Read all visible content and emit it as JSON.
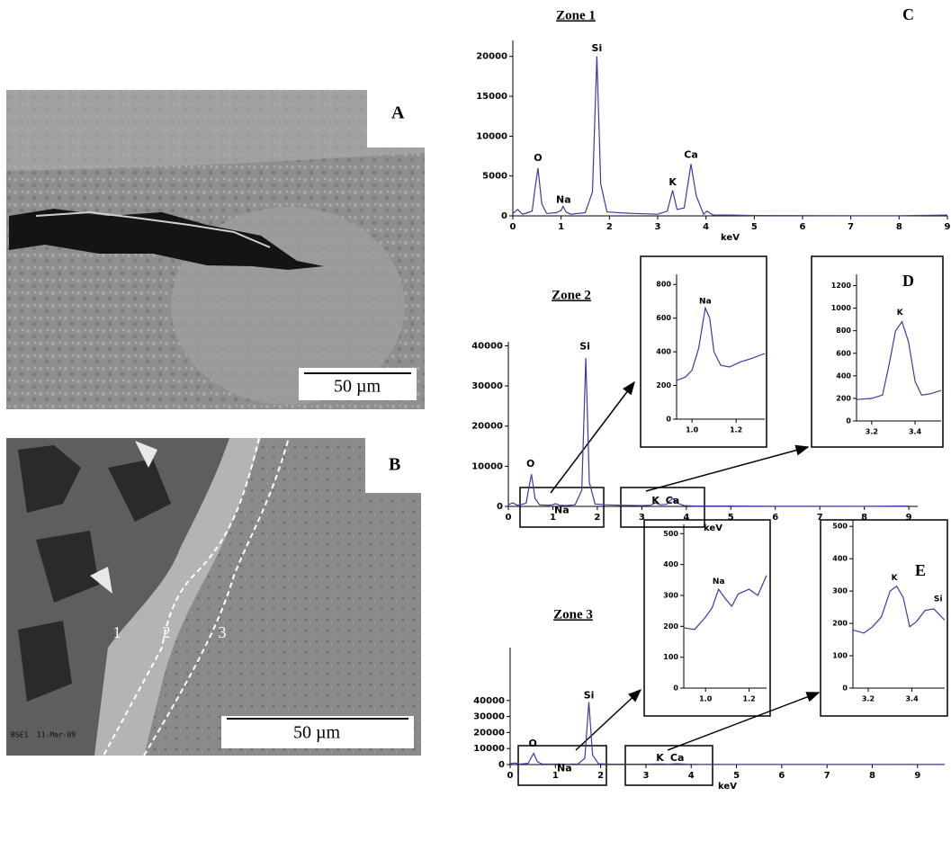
{
  "figure": {
    "panel_labels": [
      "A",
      "B",
      "C",
      "D",
      "E"
    ],
    "scale_bar_a": "50 µm",
    "scale_bar_b": "50 µm",
    "zone_numbers": [
      "1",
      "2",
      "3"
    ],
    "image_caption": "BSE1  11-Mar-09"
  },
  "chart_data": [
    {
      "type": "line",
      "title": "Zone 1",
      "x_label": "keV",
      "x": [
        0,
        0.1,
        0.2,
        0.3,
        0.4,
        0.45,
        0.52,
        0.6,
        0.7,
        0.9,
        1.0,
        1.04,
        1.1,
        1.2,
        1.5,
        1.65,
        1.74,
        1.82,
        1.95,
        2.2,
        2.5,
        3.0,
        3.2,
        3.31,
        3.4,
        3.55,
        3.69,
        3.8,
        3.95,
        4.02,
        4.15,
        4.5,
        5,
        6,
        7,
        8,
        9
      ],
      "series": [
        {
          "color": "#3a3aa8",
          "values": [
            300,
            800,
            200,
            400,
            600,
            3000,
            6000,
            1500,
            300,
            400,
            700,
            1200,
            500,
            200,
            400,
            3000,
            20000,
            4000,
            500,
            400,
            300,
            200,
            600,
            3200,
            800,
            1000,
            6500,
            2500,
            200,
            600,
            100,
            100,
            50,
            30,
            20,
            20,
            100
          ]
        }
      ],
      "peak_labels": [
        "O",
        "Na",
        "Si",
        "K",
        "Ca"
      ],
      "xlim": [
        0,
        9
      ],
      "ylim": [
        0,
        22000
      ],
      "xticks": [
        0,
        1,
        2,
        3,
        4,
        5,
        6,
        7,
        8,
        9
      ],
      "yticks": [
        0,
        5000,
        10000,
        15000,
        20000
      ]
    },
    {
      "type": "line",
      "title": "Zone 2",
      "x_label": "keV",
      "x": [
        0,
        0.1,
        0.2,
        0.3,
        0.4,
        0.45,
        0.52,
        0.6,
        0.7,
        0.9,
        1.0,
        1.06,
        1.15,
        1.3,
        1.5,
        1.65,
        1.74,
        1.82,
        1.95,
        2.2,
        2.5,
        3.0,
        3.2,
        3.31,
        3.4,
        3.55,
        3.69,
        3.8,
        3.95,
        4.2,
        5,
        6,
        7,
        8,
        9
      ],
      "series": [
        {
          "color": "#3a3aa8",
          "values": [
            400,
            900,
            300,
            500,
            800,
            4000,
            8000,
            2000,
            400,
            300,
            400,
            700,
            300,
            200,
            400,
            4000,
            37000,
            6000,
            600,
            400,
            300,
            200,
            300,
            900,
            400,
            500,
            2000,
            800,
            200,
            100,
            80,
            50,
            40,
            30,
            100
          ]
        }
      ],
      "peak_labels": [
        "O",
        "Na",
        "Si",
        "K",
        "Ca"
      ],
      "xlim": [
        0,
        9.2
      ],
      "ylim": [
        0,
        41000
      ],
      "xticks": [
        0,
        1,
        2,
        3,
        4,
        5,
        6,
        7,
        8,
        9
      ],
      "yticks": [
        0,
        10000,
        20000,
        30000,
        40000
      ]
    },
    {
      "type": "line",
      "x": [
        0.93,
        0.97,
        1.0,
        1.03,
        1.06,
        1.08,
        1.1,
        1.13,
        1.17,
        1.22,
        1.27,
        1.33
      ],
      "series": [
        {
          "color": "#3a3aa8",
          "values": [
            230,
            250,
            290,
            420,
            660,
            600,
            400,
            320,
            310,
            340,
            360,
            390
          ]
        }
      ],
      "peak_labels": [
        "Na"
      ],
      "xlim": [
        0.93,
        1.33
      ],
      "ylim": [
        0,
        860
      ],
      "xticks": [
        {
          "value": 1,
          "label": "1.0"
        },
        1.2
      ],
      "yticks": [
        0,
        200,
        400,
        600,
        800
      ]
    },
    {
      "type": "line",
      "x": [
        3.13,
        3.2,
        3.25,
        3.28,
        3.31,
        3.34,
        3.37,
        3.4,
        3.43,
        3.47,
        3.52
      ],
      "series": [
        {
          "color": "#3a3aa8",
          "values": [
            190,
            200,
            230,
            500,
            800,
            880,
            700,
            350,
            230,
            240,
            270
          ]
        }
      ],
      "peak_labels": [
        "K"
      ],
      "xlim": [
        3.13,
        3.52
      ],
      "ylim": [
        0,
        1300
      ],
      "xticks": [
        3.2,
        3.4
      ],
      "yticks": [
        0,
        200,
        400,
        600,
        800,
        1000,
        1200
      ]
    },
    {
      "type": "line",
      "title": "Zone 3",
      "x_label": "keV",
      "x": [
        0,
        0.1,
        0.2,
        0.3,
        0.4,
        0.45,
        0.52,
        0.6,
        0.7,
        0.9,
        1.0,
        1.06,
        1.15,
        1.3,
        1.5,
        1.65,
        1.74,
        1.82,
        1.95,
        2.2,
        2.5,
        3.0,
        3.31,
        3.5,
        3.69,
        3.9,
        4.2,
        5,
        6,
        7,
        8,
        9,
        9.6
      ],
      "series": [
        {
          "color": "#3a3aa8",
          "values": [
            500,
            1000,
            300,
            500,
            800,
            3500,
            7000,
            1800,
            400,
            300,
            300,
            400,
            250,
            200,
            400,
            4000,
            39000,
            6000,
            500,
            300,
            250,
            200,
            400,
            250,
            500,
            200,
            100,
            80,
            50,
            40,
            30,
            100,
            60
          ]
        }
      ],
      "peak_labels": [
        "O",
        "Na",
        "Si",
        "K",
        "Ca"
      ],
      "xlim": [
        0,
        9.6
      ],
      "ylim": [
        0,
        73000
      ],
      "xticks": [
        0,
        1,
        2,
        3,
        4,
        5,
        6,
        7,
        8,
        9
      ],
      "yticks": [
        0,
        10000,
        20000,
        30000,
        40000
      ]
    },
    {
      "type": "line",
      "x": [
        0.9,
        0.95,
        1.0,
        1.03,
        1.06,
        1.09,
        1.12,
        1.15,
        1.2,
        1.24,
        1.28
      ],
      "series": [
        {
          "color": "#3a3aa8",
          "values": [
            195,
            190,
            230,
            260,
            320,
            290,
            265,
            305,
            320,
            300,
            365
          ]
        }
      ],
      "peak_labels": [
        "Na"
      ],
      "xlim": [
        0.9,
        1.28
      ],
      "ylim": [
        0,
        530
      ],
      "xticks": [
        {
          "value": 1,
          "label": "1.0"
        },
        1.2
      ],
      "yticks": [
        0,
        100,
        200,
        300,
        400,
        500
      ]
    },
    {
      "type": "line",
      "x": [
        3.13,
        3.18,
        3.22,
        3.26,
        3.3,
        3.33,
        3.36,
        3.39,
        3.42,
        3.46,
        3.5,
        3.55
      ],
      "series": [
        {
          "color": "#3a3aa8",
          "values": [
            180,
            170,
            190,
            220,
            300,
            315,
            280,
            190,
            205,
            240,
            245,
            210
          ]
        }
      ],
      "peak_labels": [
        "K",
        "Si"
      ],
      "xlim": [
        3.13,
        3.55
      ],
      "ylim": [
        0,
        520
      ],
      "xticks": [
        3.2,
        3.4
      ],
      "yticks": [
        0,
        100,
        200,
        300,
        400,
        500
      ]
    }
  ]
}
